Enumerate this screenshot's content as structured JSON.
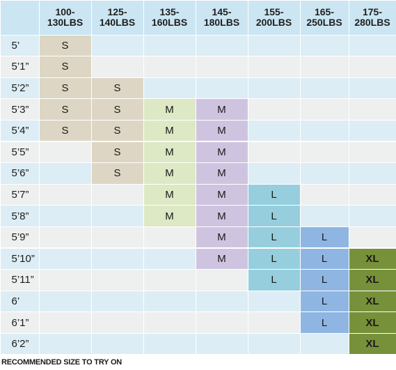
{
  "columns": [
    {
      "label": "100-\n130LBS"
    },
    {
      "label": "125-\n140LBS"
    },
    {
      "label": "135-\n160LBS"
    },
    {
      "label": "145-\n180LBS"
    },
    {
      "label": "155-\n200LBS"
    },
    {
      "label": "165-\n250LBS"
    },
    {
      "label": "175-\n280LBS"
    }
  ],
  "rows": [
    {
      "height": "5’",
      "sizes": [
        "S",
        "",
        "",
        "",
        "",
        "",
        ""
      ]
    },
    {
      "height": "5’1”",
      "sizes": [
        "S",
        "",
        "",
        "",
        "",
        "",
        ""
      ]
    },
    {
      "height": "5’2”",
      "sizes": [
        "S",
        "S",
        "",
        "",
        "",
        "",
        ""
      ]
    },
    {
      "height": "5’3”",
      "sizes": [
        "S",
        "S",
        "M",
        "M",
        "",
        "",
        ""
      ]
    },
    {
      "height": "5’4”",
      "sizes": [
        "S",
        "S",
        "M",
        "M",
        "",
        "",
        ""
      ]
    },
    {
      "height": "5’5”",
      "sizes": [
        "",
        "S",
        "M",
        "M",
        "",
        "",
        ""
      ]
    },
    {
      "height": "5’6”",
      "sizes": [
        "",
        "S",
        "M",
        "M",
        "",
        "",
        ""
      ]
    },
    {
      "height": "5’7”",
      "sizes": [
        "",
        "",
        "M",
        "M",
        "L",
        "",
        ""
      ]
    },
    {
      "height": "5’8”",
      "sizes": [
        "",
        "",
        "M",
        "M",
        "L",
        "",
        ""
      ]
    },
    {
      "height": "5’9”",
      "sizes": [
        "",
        "",
        "",
        "M",
        "L",
        "L",
        ""
      ]
    },
    {
      "height": "5’10”",
      "sizes": [
        "",
        "",
        "",
        "M",
        "L",
        "L",
        "XL"
      ]
    },
    {
      "height": "5’11”",
      "sizes": [
        "",
        "",
        "",
        "",
        "L",
        "L",
        "XL"
      ]
    },
    {
      "height": "6’",
      "sizes": [
        "",
        "",
        "",
        "",
        "",
        "L",
        "XL"
      ]
    },
    {
      "height": "6’1”",
      "sizes": [
        "",
        "",
        "",
        "",
        "",
        "L",
        "XL"
      ]
    },
    {
      "height": "6’2”",
      "sizes": [
        "",
        "",
        "",
        "",
        "",
        "",
        "XL"
      ]
    }
  ],
  "size_colors": {
    "S": "#ddd6c4",
    "M_col3": "#dde8c4",
    "M_col4": "#cfc4e0",
    "L_col5": "#96cedd",
    "L_col6": "#8fb6e2",
    "XL": "#77913a"
  },
  "stripe_colors": {
    "blue": "#dcedf5",
    "gray": "#eef0f0",
    "header": "#cbe6f2"
  },
  "footnote": "RECOMMENDED SIZE TO TRY ON"
}
